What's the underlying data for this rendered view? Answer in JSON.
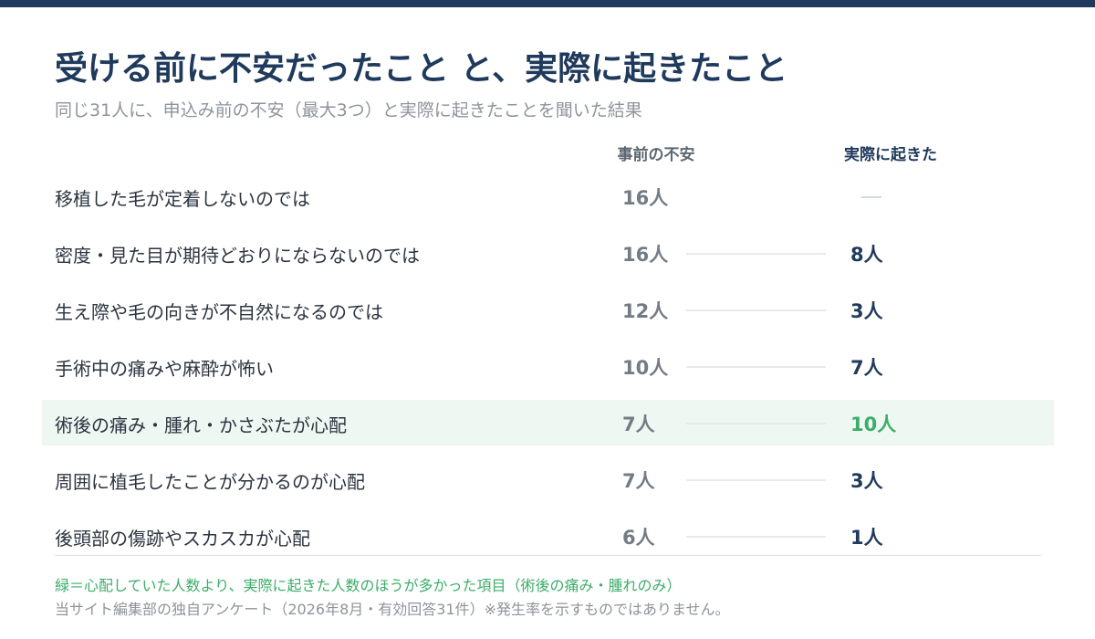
{
  "title": "受ける前に不安だったこと と、実際に起きたこと",
  "subtitle": "同じ31人に、申込み前の不安（最大3つ）と実際に起きたことを聞いた結果",
  "columns": {
    "before": "事前の不安",
    "after": "実際に起きた"
  },
  "colors": {
    "accent": "#1f3a5c",
    "highlight_green": "#3cad6a",
    "highlight_bg": "#eef7f1"
  },
  "chart_data": {
    "type": "table",
    "categories": [
      "移植した毛が定着しないのでは",
      "密度・見た目が期待どおりにならないのでは",
      "生え際や毛の向きが不自然になるのでは",
      "手術中の痛みや麻酔が怖い",
      "術後の痛み・腫れ・かさぶたが心配",
      "周囲に植毛したことが分かるのが心配",
      "後頭部の傷跡やスカスカが心配"
    ],
    "series": [
      {
        "name": "事前の不安",
        "values": [
          16,
          16,
          12,
          10,
          7,
          7,
          6
        ]
      },
      {
        "name": "実際に起きた",
        "values": [
          null,
          8,
          3,
          7,
          10,
          3,
          1
        ]
      }
    ],
    "highlighted": [
      "術後の痛み・腫れ・かさぶたが心配"
    ]
  },
  "rows": [
    {
      "label": "移植した毛が定着しないのでは",
      "before": "16人",
      "after": "—"
    },
    {
      "label": "密度・見た目が期待どおりにならないのでは",
      "before": "16人",
      "after": "8人"
    },
    {
      "label": "生え際や毛の向きが不自然になるのでは",
      "before": "12人",
      "after": "3人"
    },
    {
      "label": "手術中の痛みや麻酔が怖い",
      "before": "10人",
      "after": "7人"
    },
    {
      "label": "術後の痛み・腫れ・かさぶたが心配",
      "before": "7人",
      "after": "10人",
      "highlight": true
    },
    {
      "label": "周囲に植毛したことが分かるのが心配",
      "before": "7人",
      "after": "3人"
    },
    {
      "label": "後頭部の傷跡やスカスカが心配",
      "before": "6人",
      "after": "1人"
    }
  ],
  "notes": {
    "green": "緑＝心配していた人数より、実際に起きた人数のほうが多かった項目（術後の痛み・腫れのみ）",
    "source": "当サイト編集部の独自アンケート（2026年8月・有効回答31件）※発生率を示すものではありません。"
  }
}
